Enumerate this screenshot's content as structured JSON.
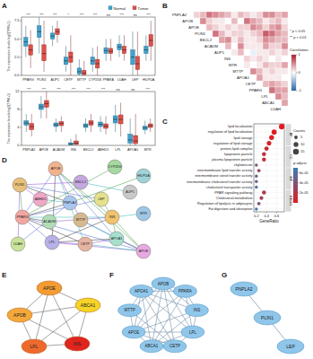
{
  "panel_labels": [
    "A",
    "B",
    "C",
    "D",
    "E",
    "F",
    "G"
  ],
  "chart_data": [
    {
      "type": "box",
      "categories": [
        "PPARG",
        "PLIN1",
        "AUP1",
        "CETP",
        "MTTP",
        "CYP2D6",
        "PPARA",
        "LDAH",
        "LEP",
        "HILPDA"
      ],
      "annotations": [
        "***",
        "***",
        "***",
        "*",
        "***",
        "***",
        "ns",
        "***",
        "ns",
        "***"
      ],
      "series": [
        {
          "name": "Normal",
          "color": "#3fa3cf",
          "box": [
            [
              2.5,
              4.0,
              4.6,
              5.2,
              6.8
            ],
            [
              3,
              5.2,
              6.0,
              6.8,
              8.0
            ],
            [
              4,
              5.0,
              5.4,
              5.8,
              6.8
            ],
            [
              0.5,
              1.5,
              2.0,
              2.5,
              4
            ],
            [
              0,
              0.2,
              0.5,
              1.0,
              2.2
            ],
            [
              0.5,
              1.5,
              2.0,
              2.5,
              3.8
            ],
            [
              2,
              3.0,
              3.4,
              3.8,
              5
            ],
            [
              2.5,
              3.5,
              3.9,
              4.3,
              5.5
            ],
            [
              0,
              1.5,
              2.5,
              3.5,
              6
            ],
            [
              2,
              3.0,
              3.5,
              4.0,
              5.5
            ]
          ]
        },
        {
          "name": "Tumor",
          "color": "#e0504a",
          "box": [
            [
              1.0,
              2.8,
              3.5,
              4.2,
              6.2
            ],
            [
              0.5,
              2.0,
              3.0,
              4.2,
              7.5
            ],
            [
              4.5,
              5.6,
              6.0,
              6.4,
              7.5
            ],
            [
              0,
              1.8,
              2.5,
              3.2,
              5.5
            ],
            [
              0,
              0.1,
              0.3,
              0.7,
              2
            ],
            [
              0,
              1.0,
              1.6,
              2.2,
              4
            ],
            [
              2,
              3.0,
              3.3,
              3.7,
              5
            ],
            [
              2,
              3.0,
              3.5,
              4.0,
              5.5
            ],
            [
              0,
              0.8,
              1.6,
              2.6,
              6
            ],
            [
              2,
              4.0,
              4.8,
              5.6,
              7.5
            ]
          ]
        }
      ],
      "y_label": "The expression levels log2(TPM+1)",
      "ylim": [
        0,
        8
      ],
      "yticks": [
        {
          "value": 0,
          "label": "0.0"
        },
        {
          "value": 2.5,
          "label": "2.5"
        },
        {
          "value": 5,
          "label": "5.0"
        },
        {
          "value": 7.5,
          "label": "7.5"
        }
      ],
      "legend": "top"
    },
    {
      "type": "box",
      "categories": [
        "PNPLA2",
        "APOE",
        "ACADM",
        "INS",
        "BSCL2",
        "ABHD5",
        "LPL",
        "APOA1",
        "MTR"
      ],
      "annotations": [
        "***",
        "***",
        "***",
        "***",
        "***",
        "***",
        "ns",
        "ns",
        "***"
      ],
      "series": [
        {
          "color": "#3fa3cf",
          "box": [
            [
              3,
              4.5,
              5.0,
              5.5,
              7
            ],
            [
              6,
              8.0,
              8.6,
              9.2,
              11
            ],
            [
              3,
              4.2,
              4.6,
              5.0,
              6
            ],
            [
              0,
              0.1,
              0.3,
              0.6,
              1.5
            ],
            [
              3,
              4.0,
              4.4,
              4.8,
              6
            ],
            [
              3,
              4.2,
              4.7,
              5.2,
              6.5
            ],
            [
              3,
              5.0,
              5.8,
              6.6,
              9
            ],
            [
              0,
              0.5,
              1.2,
              2.5,
              6
            ],
            [
              2.5,
              3.5,
              3.9,
              4.3,
              5.5
            ]
          ]
        },
        {
          "color": "#e0504a",
          "box": [
            [
              2,
              3.5,
              4.2,
              4.9,
              7
            ],
            [
              6,
              8.5,
              9.3,
              10.0,
              12
            ],
            [
              3,
              4.4,
              4.9,
              5.3,
              6.5
            ],
            [
              0,
              0.2,
              0.5,
              1.0,
              2.5
            ],
            [
              3,
              4.5,
              5.0,
              5.5,
              7
            ],
            [
              2.5,
              3.8,
              4.3,
              4.8,
              6.5
            ],
            [
              2,
              4.8,
              5.8,
              6.8,
              9.5
            ],
            [
              0,
              0.4,
              1.0,
              2.2,
              7
            ],
            [
              3,
              4.0,
              4.4,
              4.8,
              6
            ]
          ]
        }
      ],
      "y_label": "The expression levels log2(TPM+1)",
      "ylim": [
        0,
        12
      ],
      "yticks": [
        0,
        4,
        8,
        12
      ]
    },
    {
      "type": "heatmap",
      "categories": [
        "PNPLA2",
        "APOB",
        "APOE",
        "PLIN1",
        "BSCL2",
        "ACADM",
        "AUP1",
        "INS",
        "MTR",
        "MTTP",
        "APOA1",
        "CETP",
        "PPARG",
        "LPL",
        "ABCA1",
        "LDAH"
      ],
      "cells": [
        [
          0.2,
          0.3,
          0.6,
          0.5,
          0.4,
          0.3,
          0.1,
          0.3,
          0.2,
          0.1,
          0.2,
          0.5,
          0.5,
          0.3,
          0.4
        ],
        [
          0.5,
          0.2,
          0.1,
          0.1,
          0.0,
          0.3,
          0.0,
          0.6,
          0.4,
          0.3,
          0.1,
          0.2,
          0.3,
          0.1
        ],
        [
          0.3,
          0.2,
          0.1,
          0.2,
          0.1,
          0.2,
          0.2,
          0.5,
          0.4,
          0.2,
          0.4,
          0.5,
          0.2
        ],
        [
          0.6,
          0.3,
          0.1,
          0.2,
          0.2,
          0.1,
          0.2,
          0.3,
          0.7,
          0.6,
          0.4,
          0.3
        ],
        [
          0.4,
          0.5,
          0.1,
          0.3,
          0.1,
          0.1,
          0.2,
          0.5,
          0.4,
          0.3,
          0.3
        ],
        [
          0.3,
          0.0,
          0.5,
          0.1,
          0.1,
          0.1,
          0.4,
          0.2,
          0.2,
          0.5
        ],
        [
          0.1,
          0.3,
          0.0,
          -0.1,
          0.1,
          0.1,
          0.2,
          0.1,
          0.2
        ],
        [
          0.0,
          0.2,
          0.1,
          0.2,
          0.1,
          0.0,
          0.1,
          0.0
        ],
        [
          0.1,
          0.0,
          0.1,
          0.3,
          0.2,
          0.2,
          0.4
        ],
        [
          0.5,
          0.3,
          0.1,
          0.2,
          0.1,
          0.1
        ],
        [
          0.4,
          0.1,
          0.1,
          0.1,
          0.0
        ],
        [
          0.3,
          0.4,
          0.3,
          0.2
        ],
        [
          0.6,
          0.4,
          0.4
        ],
        [
          0.5,
          0.3
        ],
        [
          0.4
        ],
        []
      ],
      "legend_items": [
        "* p < 0.05",
        "** p < 0.01"
      ],
      "color_bar": {
        "title": "Correlation",
        "range": [
          -1,
          1
        ],
        "ticks": [
          -1,
          0,
          1
        ]
      }
    },
    {
      "type": "dot",
      "categories": [
        "lipid localization",
        "regulation of lipid localization",
        "lipid storage",
        "regulation of lipid storage",
        "protein-lipid complex",
        "lipoprotein particle",
        "plasma lipoprotein particle",
        "chylomicron",
        "intermembrane lipid transfer activity",
        "intermembrane sterol transfer activity",
        "intermembrane cholesterol transfer activity",
        "cholesterol transporter activity",
        "PPAR signaling pathway",
        "Cholesterol metabolism",
        "Regulation of lipolysis in adipocytes",
        "Fat digestion and absorption"
      ],
      "groups": [
        "BP",
        "BP",
        "BP",
        "BP",
        "CC",
        "CC",
        "CC",
        "CC",
        "MF",
        "MF",
        "MF",
        "MF",
        "KEGG",
        "KEGG",
        "KEGG",
        "KEGG"
      ],
      "x": [
        0.7,
        0.55,
        0.5,
        0.45,
        0.4,
        0.35,
        0.35,
        0.2,
        0.25,
        0.2,
        0.2,
        0.2,
        0.35,
        0.3,
        0.25,
        0.2
      ],
      "counts": [
        14,
        11,
        10,
        9,
        8,
        7,
        7,
        4,
        5,
        4,
        4,
        4,
        7,
        6,
        5,
        4
      ],
      "p_adjust": [
        1e-06,
        2e-06,
        3e-06,
        5e-06,
        1e-05,
        1.5e-05,
        1.5e-05,
        4e-05,
        3e-05,
        5e-05,
        5e-05,
        6e-05,
        2e-05,
        2.5e-05,
        4e-05,
        6.5e-05
      ],
      "xlim": [
        0.15,
        0.75
      ],
      "xticks": [
        0.2,
        0.4,
        0.6
      ],
      "x_label": "GeneRatio",
      "grid": true,
      "size_legend": {
        "title": "Counts",
        "values": [
          5,
          10,
          15
        ]
      },
      "color_bar": {
        "title": "p.adjust",
        "range": [
          0,
          7e-05
        ],
        "ticks": [
          {
            "value": 2e-05,
            "label": "2e-05"
          },
          {
            "value": 4e-05,
            "label": "4e-05"
          },
          {
            "value": 6e-05,
            "label": "6e-05"
          }
        ]
      }
    }
  ],
  "networks": [
    {
      "nodes": [
        {
          "label": "APOB"
        },
        {
          "label": "CYP2D6"
        },
        {
          "label": "HILPDA"
        },
        {
          "label": "PLIN1"
        },
        {
          "label": "BSCL2"
        },
        {
          "label": "AUP1"
        },
        {
          "label": "ABHD5"
        },
        {
          "label": "PNPLA2"
        },
        {
          "label": "LEP"
        },
        {
          "label": "PPARG"
        },
        {
          "label": "ACADM"
        },
        {
          "label": "MTTP"
        },
        {
          "label": "INS"
        },
        {
          "label": "MTR"
        },
        {
          "label": "LDAH"
        },
        {
          "label": "LPL"
        },
        {
          "label": "CETP"
        },
        {
          "label": "APOA1"
        },
        {
          "label": "APOE"
        }
      ],
      "edges": [
        [
          "APOB",
          "APOE"
        ],
        [
          "APOB",
          "APOA1"
        ],
        [
          "APOB",
          "LPL"
        ],
        [
          "APOB",
          "MTTP"
        ],
        [
          "APOB",
          "CETP"
        ],
        [
          "APOB",
          "INS"
        ],
        [
          "APOB",
          "PPARG"
        ],
        [
          "APOE",
          "APOA1"
        ],
        [
          "APOE",
          "LPL"
        ],
        [
          "APOE",
          "CETP"
        ],
        [
          "APOE",
          "INS"
        ],
        [
          "APOE",
          "PPARG"
        ],
        [
          "APOA1",
          "LPL"
        ],
        [
          "APOA1",
          "CETP"
        ],
        [
          "APOA1",
          "MTTP"
        ],
        [
          "APOA1",
          "INS"
        ],
        [
          "LPL",
          "PPARG"
        ],
        [
          "LPL",
          "INS"
        ],
        [
          "LPL",
          "CETP"
        ],
        [
          "INS",
          "PPARG"
        ],
        [
          "INS",
          "LEP"
        ],
        [
          "LEP",
          "PPARG"
        ],
        [
          "PLIN1",
          "PNPLA2"
        ],
        [
          "PLIN1",
          "ABHD5"
        ],
        [
          "PNPLA2",
          "ABHD5"
        ],
        [
          "PLIN1",
          "PPARG"
        ],
        [
          "PLIN1",
          "LEP"
        ],
        [
          "PNPLA2",
          "PPARG"
        ],
        [
          "PLIN1",
          "BSCL2"
        ],
        [
          "BSCL2",
          "AUP1"
        ],
        [
          "HILPDA",
          "PNPLA2"
        ],
        [
          "LDAH",
          "PNPLA2"
        ],
        [
          "ACADM",
          "PPARG"
        ],
        [
          "ACADM",
          "INS"
        ],
        [
          "MTR",
          "INS"
        ],
        [
          "CYP2D6",
          "PPARG"
        ],
        [
          "MTTP",
          "APOE"
        ],
        [
          "CETP",
          "PPARG"
        ],
        [
          "LDAH",
          "PLIN1"
        ]
      ]
    },
    {
      "nodes": [
        {
          "label": "APOE",
          "color": "#f39c32"
        },
        {
          "label": "ABCA1",
          "color": "#f5d327"
        },
        {
          "label": "APOB",
          "color": "#f5a83a"
        },
        {
          "label": "LPL",
          "color": "#ee6a2c"
        },
        {
          "label": "INS",
          "color": "#e0241e"
        }
      ],
      "edges": [
        [
          "APOE",
          "ABCA1"
        ],
        [
          "APOE",
          "APOB"
        ],
        [
          "APOE",
          "LPL"
        ],
        [
          "APOE",
          "INS"
        ],
        [
          "ABCA1",
          "APOB"
        ],
        [
          "ABCA1",
          "LPL"
        ],
        [
          "ABCA1",
          "INS"
        ],
        [
          "APOB",
          "LPL"
        ],
        [
          "APOB",
          "INS"
        ],
        [
          "LPL",
          "INS"
        ]
      ]
    },
    {
      "nodes": [
        {
          "label": "APOB"
        },
        {
          "label": "PPARA"
        },
        {
          "label": "INS"
        },
        {
          "label": "LPL"
        },
        {
          "label": "CETP"
        },
        {
          "label": "ABCA1"
        },
        {
          "label": "APOE"
        },
        {
          "label": "MTTP"
        },
        {
          "label": "APOA1"
        }
      ],
      "edges": [
        [
          "APOB",
          "PPARA"
        ],
        [
          "APOB",
          "INS"
        ],
        [
          "APOB",
          "LPL"
        ],
        [
          "APOB",
          "CETP"
        ],
        [
          "APOB",
          "ABCA1"
        ],
        [
          "APOB",
          "APOE"
        ],
        [
          "APOB",
          "MTTP"
        ],
        [
          "APOB",
          "APOA1"
        ],
        [
          "APOE",
          "PPARA"
        ],
        [
          "APOE",
          "INS"
        ],
        [
          "APOE",
          "LPL"
        ],
        [
          "APOE",
          "CETP"
        ],
        [
          "APOE",
          "ABCA1"
        ],
        [
          "APOE",
          "MTTP"
        ],
        [
          "APOE",
          "APOA1"
        ],
        [
          "APOA1",
          "PPARA"
        ],
        [
          "APOA1",
          "INS"
        ],
        [
          "APOA1",
          "LPL"
        ],
        [
          "APOA1",
          "CETP"
        ],
        [
          "APOA1",
          "ABCA1"
        ],
        [
          "APOA1",
          "MTTP"
        ],
        [
          "LPL",
          "PPARA"
        ],
        [
          "LPL",
          "INS"
        ],
        [
          "LPL",
          "CETP"
        ],
        [
          "LPL",
          "ABCA1"
        ],
        [
          "INS",
          "PPARA"
        ],
        [
          "INS",
          "ABCA1"
        ],
        [
          "CETP",
          "ABCA1"
        ],
        [
          "PPARA",
          "ABCA1"
        ],
        [
          "MTTP",
          "CETP"
        ]
      ]
    },
    {
      "nodes": [
        {
          "label": "PNPLA2"
        },
        {
          "label": "PLIN1"
        },
        {
          "label": "LEP"
        }
      ],
      "edges": [
        [
          "PNPLA2",
          "PLIN1"
        ],
        [
          "PLIN1",
          "LEP"
        ]
      ]
    }
  ]
}
